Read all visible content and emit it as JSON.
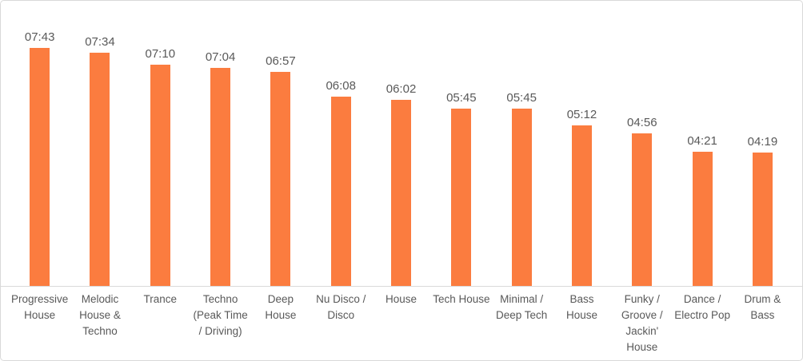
{
  "chart_data": {
    "type": "bar",
    "title": "",
    "xlabel": "",
    "ylabel": "",
    "value_format": "mm:ss",
    "grid": false,
    "legend": "none",
    "data_labels_position": "above-bar",
    "categories": [
      "Progressive House",
      "Melodic House & Techno",
      "Trance",
      "Techno (Peak Time / Driving)",
      "Deep House",
      "Nu Disco / Disco",
      "House",
      "Tech House",
      "Minimal / Deep Tech",
      "Bass House",
      "Funky / Groove / Jackin' House",
      "Dance / Electro Pop",
      "Drum & Bass"
    ],
    "values": [
      "07:43",
      "07:34",
      "07:10",
      "07:04",
      "06:57",
      "06:08",
      "06:02",
      "05:45",
      "05:45",
      "05:12",
      "04:56",
      "04:21",
      "04:19"
    ],
    "values_seconds": [
      463,
      454,
      430,
      424,
      417,
      368,
      362,
      345,
      345,
      312,
      296,
      261,
      259
    ],
    "colors": {
      "bar": "#fb7c3f",
      "label_text": "#595959",
      "axis_line": "#d9d9d9",
      "chart_border": "#d9d9d9",
      "background": "#ffffff"
    }
  }
}
